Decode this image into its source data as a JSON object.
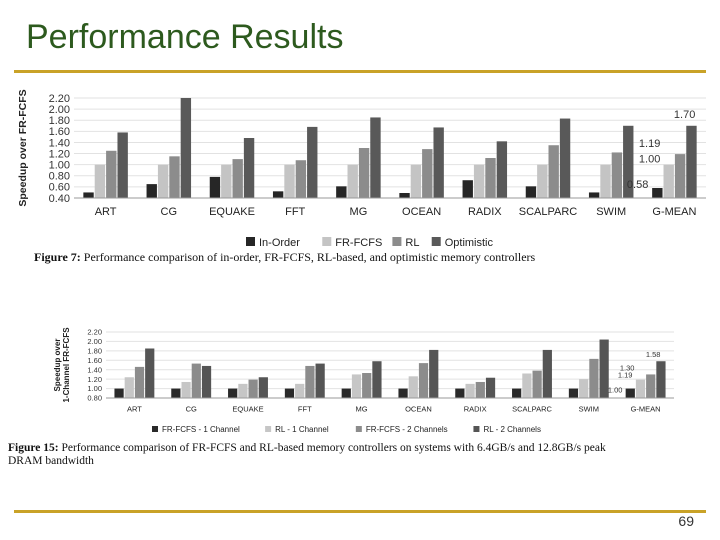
{
  "slide": {
    "title": "Performance Results",
    "page_number": "69"
  },
  "colors": {
    "title": "#2d5a1e",
    "rule": "#c9a227"
  },
  "captions": [
    {
      "label": "Figure 7:",
      "text": "Performance comparison of in-order, FR-FCFS, RL-based, and optimistic memory controllers"
    },
    {
      "label": "Figure 15:",
      "text": "Performance comparison of FR-FCFS and RL-based memory controllers on systems with 6.4GB/s and 12.8GB/s peak",
      "text2": "DRAM bandwidth"
    }
  ],
  "chart_data": [
    {
      "type": "bar",
      "ylabel": "Speedup over FR-FCFS",
      "ylim": [
        0.4,
        2.2
      ],
      "yticks": [
        "2.20",
        "2.00",
        "1.80",
        "1.60",
        "1.40",
        "1.20",
        "1.00",
        "0.80",
        "0.60",
        "0.40"
      ],
      "categories": [
        "ART",
        "CG",
        "EQUAKE",
        "FFT",
        "MG",
        "OCEAN",
        "RADIX",
        "SCALPARC",
        "SWIM",
        "G-MEAN"
      ],
      "series": [
        {
          "name": "In-Order",
          "color": "#262626",
          "values": [
            0.5,
            0.65,
            0.78,
            0.52,
            0.61,
            0.49,
            0.72,
            0.61,
            0.5,
            0.58
          ]
        },
        {
          "name": "FR-FCFS",
          "color": "#c4c4c4",
          "values": [
            1.0,
            1.0,
            1.0,
            1.0,
            1.0,
            1.0,
            1.0,
            1.0,
            1.0,
            1.0
          ]
        },
        {
          "name": "RL",
          "color": "#8c8c8c",
          "values": [
            1.25,
            1.15,
            1.1,
            1.08,
            1.3,
            1.28,
            1.12,
            1.35,
            1.22,
            1.19
          ]
        },
        {
          "name": "Optimistic",
          "color": "#595959",
          "values": [
            1.58,
            2.2,
            1.48,
            1.68,
            1.85,
            1.67,
            1.42,
            1.83,
            1.7,
            1.7
          ]
        }
      ],
      "annotations": [
        "1.70",
        "1.19",
        "1.00",
        "0.58"
      ],
      "legend": "bottom"
    },
    {
      "type": "bar",
      "ylabel": "Speedup over 1-Channel FR-FCFS",
      "ylim": [
        0.8,
        2.2
      ],
      "yticks": [
        "2.20",
        "2.00",
        "1.80",
        "1.60",
        "1.40",
        "1.20",
        "1.00",
        "0.80"
      ],
      "categories": [
        "ART",
        "CG",
        "EQUAKE",
        "FFT",
        "MG",
        "OCEAN",
        "RADIX",
        "SCALPARC",
        "SWIM",
        "G-MEAN"
      ],
      "series": [
        {
          "name": "FR-FCFS - 1 Channel",
          "color": "#2a2a2a",
          "values": [
            1.0,
            1.0,
            1.0,
            1.0,
            1.0,
            1.0,
            1.0,
            1.0,
            1.0,
            1.0
          ]
        },
        {
          "name": "RL - 1 Channel",
          "color": "#c6c6c6",
          "values": [
            1.24,
            1.14,
            1.1,
            1.1,
            1.3,
            1.26,
            1.1,
            1.32,
            1.2,
            1.19
          ]
        },
        {
          "name": "FR-FCFS - 2 Channels",
          "color": "#8c8c8c",
          "values": [
            1.46,
            1.53,
            1.19,
            1.48,
            1.33,
            1.54,
            1.14,
            1.38,
            1.63,
            1.3
          ]
        },
        {
          "name": "RL - 2 Channels",
          "color": "#555555",
          "values": [
            1.85,
            1.48,
            1.24,
            1.53,
            1.58,
            1.82,
            1.23,
            1.82,
            2.04,
            1.58
          ]
        }
      ],
      "annotations": [
        "1.58",
        "1.30",
        "1.19",
        "1.00"
      ],
      "legend": "bottom"
    }
  ]
}
